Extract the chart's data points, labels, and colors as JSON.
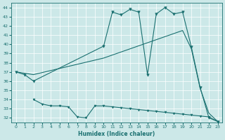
{
  "xlabel": "Humidex (Indice chaleur)",
  "xlim": [
    -0.5,
    23.5
  ],
  "ylim": [
    31.5,
    44.5
  ],
  "yticks": [
    32,
    33,
    34,
    35,
    36,
    37,
    38,
    39,
    40,
    41,
    42,
    43,
    44
  ],
  "xticks": [
    0,
    1,
    2,
    3,
    4,
    5,
    6,
    7,
    8,
    9,
    10,
    11,
    12,
    13,
    14,
    15,
    16,
    17,
    18,
    19,
    20,
    21,
    22,
    23
  ],
  "bg_color": "#cce8e8",
  "line_color": "#1a7070",
  "line1_x": [
    0,
    1,
    2,
    10,
    11,
    12,
    13,
    14,
    15,
    16,
    17,
    18,
    19,
    20,
    21,
    22,
    23
  ],
  "line1_y": [
    37.0,
    36.7,
    36.0,
    39.8,
    43.5,
    43.2,
    43.8,
    43.5,
    36.7,
    43.3,
    44.0,
    43.3,
    43.5,
    39.7,
    35.3,
    32.0,
    31.6
  ],
  "line2_x": [
    0,
    2,
    10,
    19,
    20,
    21,
    22,
    23
  ],
  "line2_y": [
    37.0,
    36.7,
    38.5,
    41.5,
    39.5,
    35.2,
    32.5,
    31.6
  ],
  "line3_x": [
    2,
    3,
    4,
    5,
    6,
    7,
    8,
    9,
    10,
    11,
    12,
    13,
    14,
    15,
    16,
    17,
    18,
    19,
    20,
    21,
    22,
    23
  ],
  "line3_y": [
    34.0,
    33.5,
    33.3,
    33.3,
    33.2,
    32.1,
    32.0,
    33.3,
    33.3,
    33.2,
    33.1,
    33.0,
    32.9,
    32.8,
    32.7,
    32.6,
    32.5,
    32.4,
    32.3,
    32.2,
    32.1,
    31.6
  ]
}
